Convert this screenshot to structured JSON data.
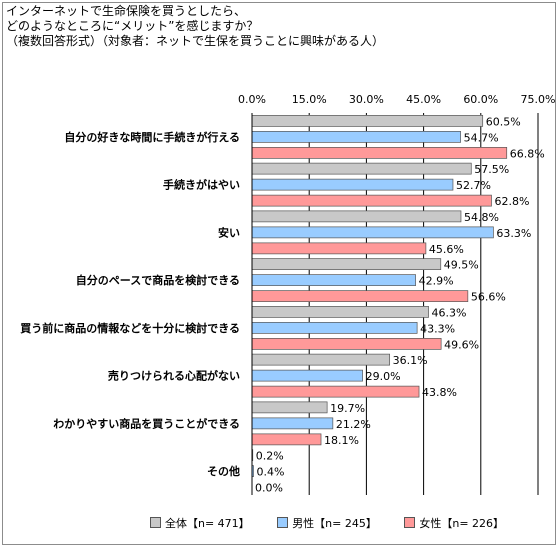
{
  "title_lines": [
    "インターネットで生命保険を買うとしたら、",
    "どのようなところに“メリット”を感じますか？",
    "（複数回答形式）（対象者：ネットで生保を買うことに興味がある人）"
  ],
  "colors": {
    "all": "#c8c8c8",
    "male": "#99ccff",
    "female": "#ff9999"
  },
  "chart_data": {
    "type": "bar",
    "orientation": "horizontal",
    "title": "インターネットで生命保険を買うとしたら、どのようなところに“メリット”を感じますか？（複数回答形式）（対象者：ネットで生保を買うことに興味がある人）",
    "categories": [
      "自分の好きな時間に手続きが行える",
      "手続きがはやい",
      "安い",
      "自分のペースで商品を検討できる",
      "買う前に商品の情報などを十分に検討できる",
      "売りつけられる心配がない",
      "わかりやすい商品を買うことができる",
      "その他"
    ],
    "series": [
      {
        "name": "全体【n= 471】",
        "values": [
          60.5,
          57.5,
          54.8,
          49.5,
          46.3,
          36.1,
          19.7,
          0.2
        ]
      },
      {
        "name": "男性【n= 245】",
        "values": [
          54.7,
          52.7,
          63.3,
          42.9,
          43.3,
          29.0,
          21.2,
          0.4
        ]
      },
      {
        "name": "女性【n= 226】",
        "values": [
          66.8,
          62.8,
          45.6,
          56.6,
          49.6,
          43.8,
          18.1,
          0.0
        ]
      }
    ],
    "xlim": [
      0,
      75
    ],
    "xticks": [
      "0.0%",
      "15.0%",
      "30.0%",
      "45.0%",
      "60.0%",
      "75.0%"
    ],
    "grid": true,
    "legend": "bottom",
    "value_suffix": "%"
  }
}
